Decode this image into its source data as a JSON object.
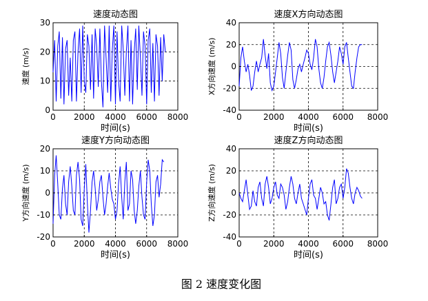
{
  "caption": "图 2  速度变化图",
  "chart_data": [
    {
      "type": "line",
      "title": "速度动态图",
      "xlabel": "时间(s)",
      "ylabel": "速度 (m/s)",
      "xlim": [
        0,
        8000
      ],
      "ylim": [
        0,
        30
      ],
      "xticks": [
        0,
        2000,
        4000,
        6000,
        8000
      ],
      "yticks": [
        0,
        10,
        20,
        30
      ],
      "grid": true,
      "series": [
        {
          "x": [
            0,
            100,
            200,
            300,
            400,
            500,
            600,
            700,
            800,
            900,
            1000,
            1100,
            1200,
            1300,
            1400,
            1500,
            1600,
            1700,
            1800,
            1900,
            2000,
            2100,
            2200,
            2300,
            2400,
            2500,
            2600,
            2700,
            2800,
            2900,
            3000,
            3100,
            3200,
            3300,
            3400,
            3500,
            3600,
            3700,
            3800,
            3900,
            4000,
            4100,
            4200,
            4300,
            4400,
            4500,
            4600,
            4700,
            4800,
            4900,
            5000,
            5100,
            5200,
            5300,
            5400,
            5500,
            5600,
            5700,
            5800,
            5900,
            6000,
            6100,
            6200,
            6300,
            6400,
            6500,
            6600,
            6700,
            6800,
            6900,
            7000,
            7100,
            7200
          ],
          "y": [
            13,
            24,
            3,
            22,
            27,
            4,
            25,
            2,
            21,
            24,
            5,
            18,
            3,
            24,
            27,
            3,
            20,
            28,
            6,
            29,
            10,
            6,
            26,
            22,
            7,
            26,
            4,
            28,
            22,
            8,
            28,
            10,
            1,
            29,
            18,
            6,
            29,
            3,
            21,
            29,
            2,
            27,
            10,
            3,
            29,
            21,
            5,
            20,
            29,
            3,
            24,
            2,
            20,
            28,
            7,
            29,
            18,
            5,
            27,
            22,
            2,
            24,
            28,
            6,
            23,
            3,
            26,
            22,
            5,
            25,
            10,
            26,
            20
          ]
        }
      ]
    },
    {
      "type": "line",
      "title": "速度X方向动态图",
      "xlabel": "时间(s)",
      "ylabel": "X方向速度 (m/s)",
      "xlim": [
        0,
        8000
      ],
      "ylim": [
        -40,
        40
      ],
      "xticks": [
        0,
        2000,
        4000,
        6000,
        8000
      ],
      "yticks": [
        -40,
        -20,
        0,
        20,
        40
      ],
      "grid": true,
      "series": [
        {
          "x": [
            0,
            100,
            200,
            300,
            400,
            500,
            600,
            700,
            800,
            900,
            1000,
            1100,
            1200,
            1300,
            1400,
            1500,
            1600,
            1700,
            1800,
            1900,
            2000,
            2100,
            2200,
            2300,
            2400,
            2500,
            2600,
            2700,
            2800,
            2900,
            3000,
            3100,
            3200,
            3300,
            3400,
            3500,
            3600,
            3700,
            3800,
            3900,
            4000,
            4100,
            4200,
            4300,
            4400,
            4500,
            4600,
            4700,
            4800,
            4900,
            5000,
            5100,
            5200,
            5300,
            5400,
            5500,
            5600,
            5700,
            5800,
            5900,
            6000,
            6100,
            6200,
            6300,
            6400,
            6500,
            6600,
            6700,
            6800,
            6900,
            7000,
            7100
          ],
          "y": [
            -18,
            8,
            18,
            5,
            -5,
            2,
            -8,
            -22,
            -18,
            -5,
            5,
            -5,
            2,
            8,
            25,
            10,
            -2,
            12,
            -15,
            -22,
            -18,
            -5,
            8,
            22,
            12,
            -10,
            -20,
            -5,
            10,
            22,
            15,
            -12,
            -20,
            -12,
            -2,
            2,
            -5,
            2,
            8,
            15,
            12,
            2,
            -3,
            8,
            25,
            18,
            -2,
            -15,
            -20,
            -10,
            5,
            18,
            22,
            10,
            -5,
            -15,
            -5,
            5,
            18,
            12,
            2,
            18,
            22,
            8,
            -5,
            -18,
            -20,
            -5,
            8,
            18,
            20,
            20
          ]
        }
      ]
    },
    {
      "type": "line",
      "title": "速度Y方向动态图",
      "xlabel": "时间(s)",
      "ylabel": "Y方向速度 (m/s)",
      "xlim": [
        0,
        8000
      ],
      "ylim": [
        -20,
        20
      ],
      "xticks": [
        0,
        2000,
        4000,
        6000,
        8000
      ],
      "yticks": [
        -20,
        -10,
        0,
        10,
        20
      ],
      "grid": true,
      "series": [
        {
          "x": [
            0,
            100,
            200,
            300,
            400,
            500,
            600,
            700,
            800,
            900,
            1000,
            1100,
            1200,
            1300,
            1400,
            1500,
            1600,
            1700,
            1800,
            1900,
            2000,
            2100,
            2200,
            2300,
            2400,
            2500,
            2600,
            2700,
            2800,
            2900,
            3000,
            3100,
            3200,
            3300,
            3400,
            3500,
            3600,
            3700,
            3800,
            3900,
            4000,
            4100,
            4200,
            4300,
            4400,
            4500,
            4600,
            4700,
            4800,
            4900,
            5000,
            5100,
            5200,
            5300,
            5400,
            5500,
            5600,
            5700,
            5800,
            5900,
            6000,
            6100,
            6200,
            6300,
            6400,
            6500,
            6600,
            6700,
            6800,
            6900,
            7000,
            7100
          ],
          "y": [
            -14,
            8,
            17,
            4,
            -10,
            -12,
            2,
            8,
            -5,
            -10,
            5,
            12,
            3,
            -8,
            -10,
            8,
            14,
            6,
            -12,
            -15,
            2,
            13,
            -5,
            -18,
            -8,
            5,
            10,
            2,
            -8,
            -3,
            5,
            8,
            -2,
            -10,
            -5,
            3,
            9,
            2,
            -3,
            -5,
            -12,
            -8,
            4,
            12,
            -2,
            -12,
            5,
            14,
            -8,
            -5,
            10,
            6,
            -8,
            -14,
            -8,
            3,
            10,
            -2,
            -10,
            -12,
            5,
            15,
            10,
            -5,
            -15,
            -10,
            5,
            8,
            -2,
            4,
            15,
            14
          ]
        }
      ]
    },
    {
      "type": "line",
      "title": "速度Z方向动态图",
      "xlabel": "时间(s)",
      "ylabel": "Z方向速度 (m/s)",
      "xlim": [
        0,
        8000
      ],
      "ylim": [
        -40,
        40
      ],
      "xticks": [
        0,
        2000,
        4000,
        6000,
        8000
      ],
      "yticks": [
        -40,
        -20,
        0,
        20,
        40
      ],
      "grid": true,
      "series": [
        {
          "x": [
            0,
            100,
            200,
            300,
            400,
            500,
            600,
            700,
            800,
            900,
            1000,
            1100,
            1200,
            1300,
            1400,
            1500,
            1600,
            1700,
            1800,
            1900,
            2000,
            2100,
            2200,
            2300,
            2400,
            2500,
            2600,
            2700,
            2800,
            2900,
            3000,
            3100,
            3200,
            3300,
            3400,
            3500,
            3600,
            3700,
            3800,
            3900,
            4000,
            4100,
            4200,
            4300,
            4400,
            4500,
            4600,
            4700,
            4800,
            4900,
            5000,
            5100,
            5200,
            5300,
            5400,
            5500,
            5600,
            5700,
            5800,
            5900,
            6000,
            6100,
            6200,
            6300,
            6400,
            6500,
            6600,
            6700,
            6800,
            6900,
            7000,
            7100
          ],
          "y": [
            0,
            -5,
            -8,
            2,
            12,
            -2,
            -15,
            -12,
            2,
            -8,
            -12,
            5,
            10,
            -5,
            -12,
            8,
            15,
            5,
            -10,
            -5,
            5,
            10,
            -2,
            -5,
            8,
            5,
            -2,
            -15,
            -8,
            5,
            15,
            8,
            -5,
            -10,
            0,
            8,
            -5,
            -10,
            -15,
            -20,
            -5,
            8,
            12,
            -2,
            -5,
            -15,
            -5,
            5,
            0,
            -10,
            -8,
            -20,
            -25,
            -10,
            5,
            12,
            -10,
            -5,
            5,
            8,
            -5,
            5,
            22,
            18,
            5,
            -5,
            -10,
            0,
            5,
            2,
            -3,
            -5
          ]
        }
      ]
    }
  ]
}
